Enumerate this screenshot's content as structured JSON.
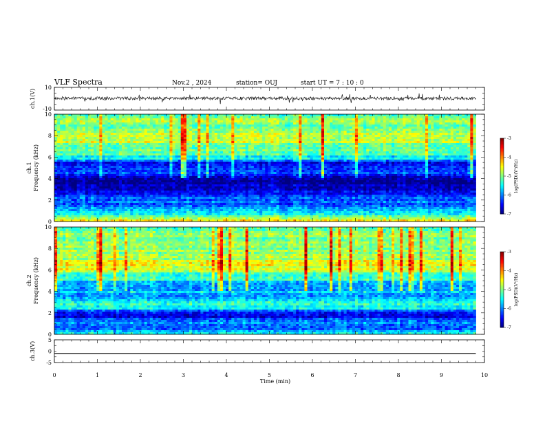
{
  "header": {
    "title": "VLF Spectra",
    "date": "Nov.2  , 2024",
    "station": "station= OUJ",
    "start_ut": "start  UT  =   7  : 10 : 0"
  },
  "chart_data": [
    {
      "type": "line",
      "panel": "ch1-waveform",
      "ylabel": "ch.1(V)",
      "ylim": [
        -10,
        10
      ],
      "ytick_labels": [
        "10",
        "-10"
      ],
      "xlim": [
        0,
        10
      ],
      "trace_level": 0.3,
      "trace_noise": 1.4,
      "data_end_min": 9.8
    },
    {
      "type": "heatmap",
      "panel": "ch1-spectrogram",
      "ylabel": "ch.1\nFrequency (kHz)",
      "ylim": [
        0,
        10
      ],
      "ytick_labels": [
        "0",
        "2",
        "4",
        "6",
        "8",
        "10"
      ],
      "xlim": [
        0,
        10
      ],
      "data_end_min": 9.8,
      "freq_profile_khz": [
        0,
        0.5,
        1,
        1.5,
        2,
        2.5,
        3,
        3.5,
        4,
        4.5,
        5,
        5.5,
        6,
        6.5,
        7,
        7.5,
        8,
        8.5,
        9,
        9.5,
        10
      ],
      "freq_profile_logpsd": [
        -4.4,
        -5.2,
        -5.7,
        -6.2,
        -6.1,
        -6.4,
        -6.6,
        -6.8,
        -6.9,
        -6.3,
        -6.5,
        -6.3,
        -5.4,
        -5.1,
        -4.9,
        -4.8,
        -4.9,
        -4.9,
        -4.9,
        -5.0,
        -5.0
      ],
      "colorbar": {
        "label": "log(PSD)(V²/Hz)",
        "range": [
          -7,
          -3
        ],
        "tick_labels": [
          "-3",
          "-4",
          "-5",
          "-6",
          "-7"
        ]
      }
    },
    {
      "type": "heatmap",
      "panel": "ch2-spectrogram",
      "ylabel": "ch.2\nFrequency (kHz)",
      "ylim": [
        0,
        10
      ],
      "ytick_labels": [
        "0",
        "2",
        "4",
        "6",
        "8",
        "10"
      ],
      "xlim": [
        0,
        10
      ],
      "data_end_min": 9.8,
      "freq_profile_khz": [
        0,
        0.5,
        1,
        1.5,
        2,
        2.5,
        3,
        3.5,
        4,
        4.5,
        5,
        5.5,
        6,
        6.5,
        7,
        7.5,
        8,
        8.5,
        9,
        9.5,
        10
      ],
      "freq_profile_logpsd": [
        -5.6,
        -6.0,
        -5.8,
        -6.4,
        -6.3,
        -5.3,
        -5.6,
        -6.0,
        -5.7,
        -5.8,
        -5.5,
        -5.2,
        -4.7,
        -4.5,
        -4.8,
        -4.8,
        -4.9,
        -4.9,
        -4.9,
        -5.0,
        -5.0
      ],
      "colorbar": {
        "label": "log(PSD)(V²/Hz)",
        "range": [
          -7,
          -3
        ],
        "tick_labels": [
          "-3",
          "-4",
          "-5",
          "-6",
          "-7"
        ]
      }
    },
    {
      "type": "line",
      "panel": "ch3-waveform",
      "ylabel": "ch.3(V)",
      "ylim": [
        -5,
        5
      ],
      "ytick_labels": [
        "5",
        "0",
        "-5"
      ],
      "xlim": [
        0,
        10
      ],
      "trace_level": -1.0,
      "data_end_min": 9.8,
      "xlabel": "Time  (min)",
      "xtick_labels": [
        "0",
        "1",
        "2",
        "3",
        "4",
        "5",
        "6",
        "7",
        "8",
        "9",
        "10"
      ]
    }
  ]
}
